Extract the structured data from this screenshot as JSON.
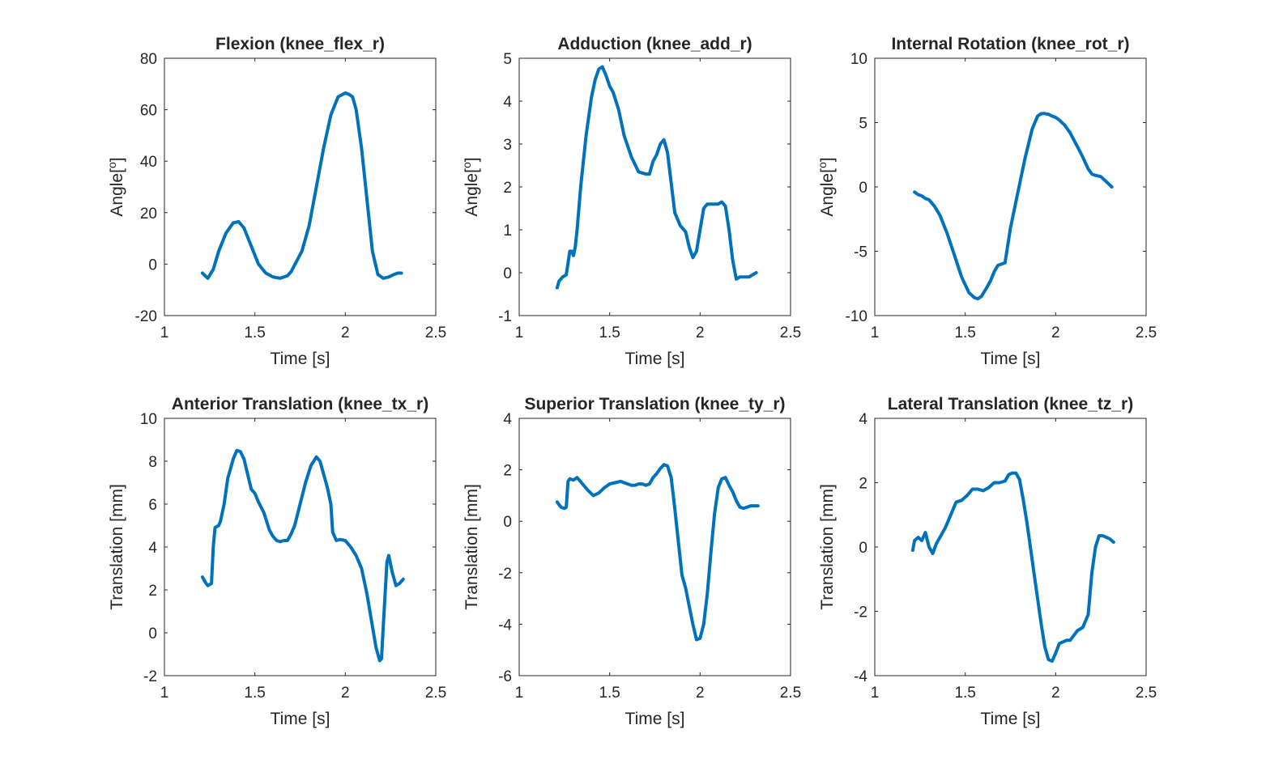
{
  "figure": {
    "style": {
      "line_color": "#0072BD",
      "axis_color": "#262626",
      "background": "#ffffff"
    }
  },
  "chart_data": [
    {
      "type": "line",
      "title": "Flexion (knee_flex_r)",
      "xlabel": "Time [s]",
      "ylabel": "Angle[°]",
      "xlim": [
        1,
        2.5
      ],
      "ylim": [
        -20,
        80
      ],
      "xticks": [
        1,
        1.5,
        2,
        2.5
      ],
      "xtick_labels": [
        "1",
        "1.5",
        "2",
        "2.5"
      ],
      "yticks": [
        -20,
        0,
        20,
        40,
        60,
        80
      ],
      "ytick_labels": [
        "-20",
        "0",
        "20",
        "40",
        "60",
        "80"
      ],
      "grid": false,
      "series": [
        {
          "x": [
            1.21,
            1.24,
            1.27,
            1.3,
            1.34,
            1.38,
            1.41,
            1.44,
            1.48,
            1.52,
            1.56,
            1.6,
            1.64,
            1.68,
            1.7,
            1.73,
            1.76,
            1.8,
            1.84,
            1.88,
            1.92,
            1.96,
            2.0,
            2.02,
            2.04,
            2.06,
            2.09,
            2.12,
            2.15,
            2.18,
            2.21,
            2.24,
            2.27,
            2.29,
            2.31
          ],
          "y": [
            -3.5,
            -5.5,
            -2,
            5,
            12,
            16,
            16.5,
            14,
            7,
            0,
            -3.5,
            -5,
            -5.5,
            -4.5,
            -3,
            1,
            5,
            15,
            30,
            45,
            58,
            65,
            66.5,
            66,
            65,
            60,
            45,
            25,
            5,
            -4,
            -5.5,
            -5,
            -4,
            -3.5,
            -3.5
          ]
        }
      ]
    },
    {
      "type": "line",
      "title": "Adduction (knee_add_r)",
      "xlabel": "Time [s]",
      "ylabel": "Angle[°]",
      "xlim": [
        1,
        2.5
      ],
      "ylim": [
        -1,
        5
      ],
      "xticks": [
        1,
        1.5,
        2,
        2.5
      ],
      "xtick_labels": [
        "1",
        "1.5",
        "2",
        "2.5"
      ],
      "yticks": [
        -1,
        0,
        1,
        2,
        3,
        4,
        5
      ],
      "ytick_labels": [
        "-1",
        "0",
        "1",
        "2",
        "3",
        "4",
        "5"
      ],
      "grid": false,
      "series": [
        {
          "x": [
            1.21,
            1.22,
            1.24,
            1.26,
            1.28,
            1.29,
            1.3,
            1.31,
            1.32,
            1.34,
            1.37,
            1.4,
            1.42,
            1.44,
            1.46,
            1.48,
            1.5,
            1.52,
            1.55,
            1.58,
            1.62,
            1.66,
            1.7,
            1.72,
            1.74,
            1.76,
            1.78,
            1.8,
            1.82,
            1.84,
            1.86,
            1.89,
            1.92,
            1.94,
            1.96,
            1.98,
            2.0,
            2.02,
            2.04,
            2.07,
            2.1,
            2.12,
            2.14,
            2.16,
            2.18,
            2.2,
            2.22,
            2.24,
            2.27,
            2.31
          ],
          "y": [
            -0.35,
            -0.2,
            -0.1,
            -0.05,
            0.5,
            0.5,
            0.4,
            0.6,
            1.0,
            2.0,
            3.2,
            4.1,
            4.5,
            4.75,
            4.8,
            4.6,
            4.35,
            4.2,
            3.8,
            3.2,
            2.7,
            2.35,
            2.3,
            2.3,
            2.6,
            2.75,
            3.0,
            3.1,
            2.8,
            2.1,
            1.4,
            1.1,
            0.95,
            0.6,
            0.35,
            0.5,
            1.0,
            1.5,
            1.6,
            1.6,
            1.6,
            1.65,
            1.55,
            1.0,
            0.3,
            -0.15,
            -0.1,
            -0.1,
            -0.1,
            0.0
          ]
        }
      ]
    },
    {
      "type": "line",
      "title": "Internal Rotation (knee_rot_r)",
      "xlabel": "Time [s]",
      "ylabel": "Angle[°]",
      "xlim": [
        1,
        2.5
      ],
      "ylim": [
        -10,
        10
      ],
      "xticks": [
        1,
        1.5,
        2,
        2.5
      ],
      "xtick_labels": [
        "1",
        "1.5",
        "2",
        "2.5"
      ],
      "yticks": [
        -10,
        -5,
        0,
        5,
        10
      ],
      "ytick_labels": [
        "-10",
        "-5",
        "0",
        "5",
        "10"
      ],
      "grid": false,
      "series": [
        {
          "x": [
            1.22,
            1.24,
            1.26,
            1.28,
            1.3,
            1.33,
            1.36,
            1.4,
            1.44,
            1.48,
            1.52,
            1.55,
            1.57,
            1.59,
            1.62,
            1.64,
            1.66,
            1.68,
            1.7,
            1.72,
            1.75,
            1.79,
            1.83,
            1.87,
            1.9,
            1.92,
            1.94,
            1.96,
            1.98,
            2.0,
            2.02,
            2.05,
            2.08,
            2.11,
            2.14,
            2.16,
            2.18,
            2.2,
            2.22,
            2.25,
            2.28,
            2.31
          ],
          "y": [
            -0.4,
            -0.6,
            -0.7,
            -0.9,
            -1.0,
            -1.5,
            -2.2,
            -3.6,
            -5.3,
            -7.0,
            -8.2,
            -8.6,
            -8.7,
            -8.5,
            -7.8,
            -7.3,
            -6.6,
            -6.1,
            -6.0,
            -5.9,
            -3.2,
            -0.5,
            2.2,
            4.5,
            5.5,
            5.7,
            5.7,
            5.65,
            5.5,
            5.4,
            5.2,
            4.8,
            4.2,
            3.4,
            2.6,
            2.0,
            1.4,
            1.0,
            0.9,
            0.8,
            0.4,
            0.0
          ]
        }
      ]
    },
    {
      "type": "line",
      "title": "Anterior Translation (knee_tx_r)",
      "xlabel": "Time [s]",
      "ylabel": "Translation [mm]",
      "xlim": [
        1,
        2.5
      ],
      "ylim": [
        -2,
        10
      ],
      "xticks": [
        1,
        1.5,
        2,
        2.5
      ],
      "xtick_labels": [
        "1",
        "1.5",
        "2",
        "2.5"
      ],
      "yticks": [
        -2,
        0,
        2,
        4,
        6,
        8,
        10
      ],
      "ytick_labels": [
        "-2",
        "0",
        "2",
        "4",
        "6",
        "8",
        "10"
      ],
      "grid": false,
      "series": [
        {
          "x": [
            1.21,
            1.23,
            1.24,
            1.26,
            1.27,
            1.28,
            1.3,
            1.31,
            1.33,
            1.35,
            1.38,
            1.4,
            1.42,
            1.44,
            1.46,
            1.48,
            1.5,
            1.52,
            1.55,
            1.58,
            1.6,
            1.62,
            1.64,
            1.66,
            1.68,
            1.7,
            1.72,
            1.75,
            1.78,
            1.81,
            1.84,
            1.86,
            1.88,
            1.9,
            1.92,
            1.93,
            1.95,
            1.97,
            2.0,
            2.03,
            2.06,
            2.09,
            2.12,
            2.15,
            2.17,
            2.19,
            2.2,
            2.21,
            2.23,
            2.24,
            2.26,
            2.28,
            2.3,
            2.32
          ],
          "y": [
            2.6,
            2.3,
            2.2,
            2.3,
            4.0,
            4.9,
            5.0,
            5.2,
            6.0,
            7.2,
            8.1,
            8.5,
            8.45,
            8.1,
            7.4,
            6.7,
            6.5,
            6.1,
            5.6,
            4.8,
            4.5,
            4.3,
            4.25,
            4.3,
            4.3,
            4.6,
            5.0,
            6.0,
            7.0,
            7.8,
            8.2,
            8.0,
            7.4,
            6.8,
            6.0,
            4.7,
            4.3,
            4.35,
            4.3,
            4.0,
            3.6,
            3.0,
            1.8,
            0.3,
            -0.7,
            -1.3,
            -1.2,
            0.3,
            3.3,
            3.6,
            2.8,
            2.2,
            2.3,
            2.5
          ]
        }
      ]
    },
    {
      "type": "line",
      "title": "Superior Translation (knee_ty_r)",
      "xlabel": "Time [s]",
      "ylabel": "Translation [mm]",
      "xlim": [
        1,
        2.5
      ],
      "ylim": [
        -6,
        4
      ],
      "xticks": [
        1,
        1.5,
        2,
        2.5
      ],
      "xtick_labels": [
        "1",
        "1.5",
        "2",
        "2.5"
      ],
      "yticks": [
        -6,
        -4,
        -2,
        0,
        2,
        4
      ],
      "ytick_labels": [
        "-6",
        "-4",
        "-2",
        "0",
        "2",
        "4"
      ],
      "grid": false,
      "series": [
        {
          "x": [
            1.21,
            1.23,
            1.25,
            1.26,
            1.27,
            1.28,
            1.3,
            1.32,
            1.35,
            1.38,
            1.41,
            1.44,
            1.47,
            1.5,
            1.53,
            1.56,
            1.58,
            1.6,
            1.62,
            1.64,
            1.66,
            1.68,
            1.7,
            1.72,
            1.74,
            1.76,
            1.78,
            1.8,
            1.82,
            1.84,
            1.86,
            1.88,
            1.9,
            1.92,
            1.94,
            1.96,
            1.98,
            2.0,
            2.02,
            2.04,
            2.06,
            2.08,
            2.1,
            2.12,
            2.14,
            2.16,
            2.18,
            2.2,
            2.22,
            2.24,
            2.26,
            2.28,
            2.3,
            2.32
          ],
          "y": [
            0.75,
            0.55,
            0.5,
            0.55,
            1.55,
            1.65,
            1.6,
            1.7,
            1.45,
            1.2,
            1.0,
            1.1,
            1.3,
            1.45,
            1.5,
            1.55,
            1.5,
            1.45,
            1.4,
            1.4,
            1.45,
            1.45,
            1.4,
            1.45,
            1.7,
            1.85,
            2.05,
            2.2,
            2.15,
            1.7,
            0.5,
            -0.8,
            -2.1,
            -2.6,
            -3.3,
            -4.0,
            -4.6,
            -4.55,
            -4.0,
            -2.8,
            -1.2,
            0.3,
            1.3,
            1.65,
            1.7,
            1.4,
            1.15,
            0.8,
            0.55,
            0.5,
            0.55,
            0.6,
            0.6,
            0.6
          ]
        }
      ]
    },
    {
      "type": "line",
      "title": "Lateral Translation (knee_tz_r)",
      "xlabel": "Time [s]",
      "ylabel": "Translation [mm]",
      "xlim": [
        1,
        2.5
      ],
      "ylim": [
        -4,
        4
      ],
      "xticks": [
        1,
        1.5,
        2,
        2.5
      ],
      "xtick_labels": [
        "1",
        "1.5",
        "2",
        "2.5"
      ],
      "yticks": [
        -4,
        -2,
        0,
        2,
        4
      ],
      "ytick_labels": [
        "-4",
        "-2",
        "0",
        "2",
        "4"
      ],
      "grid": false,
      "series": [
        {
          "x": [
            1.21,
            1.22,
            1.24,
            1.26,
            1.28,
            1.3,
            1.32,
            1.34,
            1.36,
            1.39,
            1.42,
            1.45,
            1.48,
            1.51,
            1.54,
            1.57,
            1.6,
            1.63,
            1.66,
            1.69,
            1.72,
            1.74,
            1.76,
            1.78,
            1.8,
            1.82,
            1.84,
            1.86,
            1.88,
            1.9,
            1.92,
            1.94,
            1.96,
            1.98,
            2.0,
            2.02,
            2.04,
            2.06,
            2.08,
            2.1,
            2.12,
            2.15,
            2.18,
            2.2,
            2.22,
            2.24,
            2.26,
            2.28,
            2.3,
            2.32
          ],
          "y": [
            -0.1,
            0.2,
            0.3,
            0.2,
            0.45,
            0.0,
            -0.2,
            0.1,
            0.3,
            0.6,
            1.0,
            1.4,
            1.45,
            1.6,
            1.8,
            1.8,
            1.75,
            1.85,
            2.0,
            2.0,
            2.05,
            2.25,
            2.3,
            2.3,
            2.1,
            1.5,
            0.8,
            0.0,
            -0.8,
            -1.6,
            -2.4,
            -3.1,
            -3.5,
            -3.55,
            -3.3,
            -3.0,
            -2.95,
            -2.9,
            -2.9,
            -2.75,
            -2.6,
            -2.5,
            -2.1,
            -0.8,
            0.0,
            0.35,
            0.35,
            0.3,
            0.25,
            0.15
          ]
        }
      ]
    }
  ]
}
